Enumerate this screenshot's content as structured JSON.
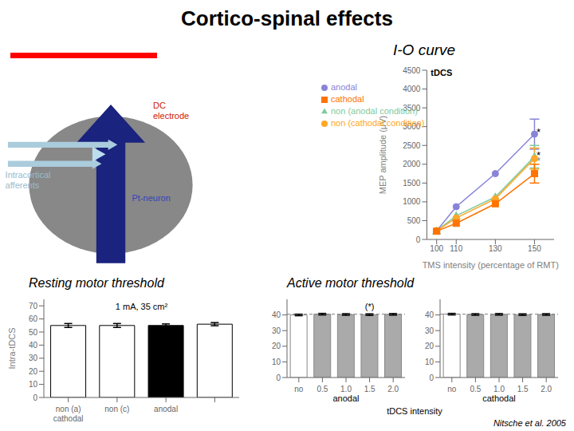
{
  "title": "Cortico-spinal effects",
  "annotations": [
    {
      "text": "DC\nelectrode",
      "color": "#cc2200"
    },
    {
      "text": "Intracortical\nafferents",
      "color": "#99bbcc"
    },
    {
      "text": "Pt-neuron",
      "color": "#3344bb"
    },
    {
      "text": "Nitsche et al. 2005",
      "color": "#000000"
    }
  ],
  "chart_data": [
    {
      "type": "line",
      "title": "I-O curve",
      "x_label": "TMS intensity (percentage of RMT)",
      "y_label": "MEP amplitude (μV)",
      "x": [
        100,
        110,
        130,
        150
      ],
      "xlim": [
        95,
        160
      ],
      "xticks": [
        100,
        110,
        130,
        150
      ],
      "ylim": [
        0,
        4500
      ],
      "yticks": [
        0,
        500,
        1000,
        1500,
        2000,
        2500,
        3000,
        3500,
        4000,
        4500
      ],
      "grid": false,
      "legend": "upper left",
      "series": [
        {
          "name": "anodal",
          "color": "#8884d8",
          "marker": "circle",
          "values": [
            230,
            870,
            1750,
            2800
          ],
          "errors": [
            null,
            null,
            null,
            400
          ]
        },
        {
          "name": "non (anodal condition)",
          "color": "#82ca9d",
          "marker": "triangle",
          "values": [
            230,
            630,
            1130,
            2200
          ],
          "errors": [
            null,
            null,
            null,
            300
          ]
        },
        {
          "name": "non (cathodal condition)",
          "color": "#ffa726",
          "marker": "circle",
          "values": [
            230,
            570,
            1080,
            2150
          ],
          "errors": [
            null,
            null,
            null,
            280
          ]
        },
        {
          "name": "cathodal",
          "color": "#ff7300",
          "marker": "square",
          "values": [
            220,
            430,
            950,
            1750
          ],
          "errors": [
            null,
            null,
            null,
            250
          ]
        }
      ],
      "annotations": [
        {
          "text": "tDCS",
          "x": 97,
          "y": 4350,
          "color": "#000000"
        },
        {
          "text": "*",
          "x": 151,
          "y": 2850,
          "color": "#000000"
        },
        {
          "text": "*",
          "x": 151,
          "y": 2250,
          "color": "#000000"
        },
        {
          "text": "*",
          "x": 151,
          "y": 2100,
          "color": "gray"
        }
      ]
    },
    {
      "type": "bar",
      "title": "Resting motor threshold",
      "y_label": "Intra-tDCS",
      "annotations": [
        {
          "text": "1 mA, 35 cm²"
        }
      ],
      "categories": [
        "non (a)\ncathodal",
        "non (c)",
        "anodal",
        null
      ],
      "values": [
        55,
        55,
        55,
        56
      ],
      "errors": [
        1.5,
        1.5,
        1.2,
        1.2
      ],
      "colors": [
        "white",
        "white",
        "black",
        "white"
      ],
      "ylim": [
        0,
        75
      ],
      "yticks": [
        0,
        10,
        20,
        30,
        40,
        50,
        60,
        70
      ],
      "grid": false
    },
    {
      "type": "bar",
      "title": "Active motor threshold",
      "subtitle": "anodal",
      "x_label": "tDCS intensity",
      "categories": [
        "no",
        "0.5",
        "1.0",
        "1.5",
        "2.0"
      ],
      "values": [
        40,
        40.5,
        40.3,
        40.2,
        40.4
      ],
      "errors": [
        0.5,
        0.5,
        0.5,
        0.5,
        0.5
      ],
      "colors": [
        "white",
        "#aaaaaa",
        "#aaaaaa",
        "#aaaaaa",
        "#aaaaaa"
      ],
      "ylim": [
        0,
        50
      ],
      "yticks": [
        0,
        10,
        20,
        30,
        40
      ],
      "reference_line": 40.5,
      "grid": false,
      "annotations": [
        {
          "text": "(*)",
          "x": "1.5",
          "y": 43.5
        }
      ]
    },
    {
      "type": "bar",
      "subtitle": "cathodal",
      "categories": [
        "no",
        "0.5",
        "1.0",
        "1.5",
        "2.0"
      ],
      "values": [
        40.5,
        40.3,
        40.4,
        40.2,
        40.3
      ],
      "errors": [
        0.5,
        0.5,
        0.5,
        0.5,
        0.5
      ],
      "colors": [
        "white",
        "#aaaaaa",
        "#aaaaaa",
        "#aaaaaa",
        "#aaaaaa"
      ],
      "ylim": [
        0,
        50
      ],
      "yticks": [
        0,
        10,
        20,
        30,
        40
      ],
      "reference_line": 40.5,
      "grid": false
    }
  ]
}
